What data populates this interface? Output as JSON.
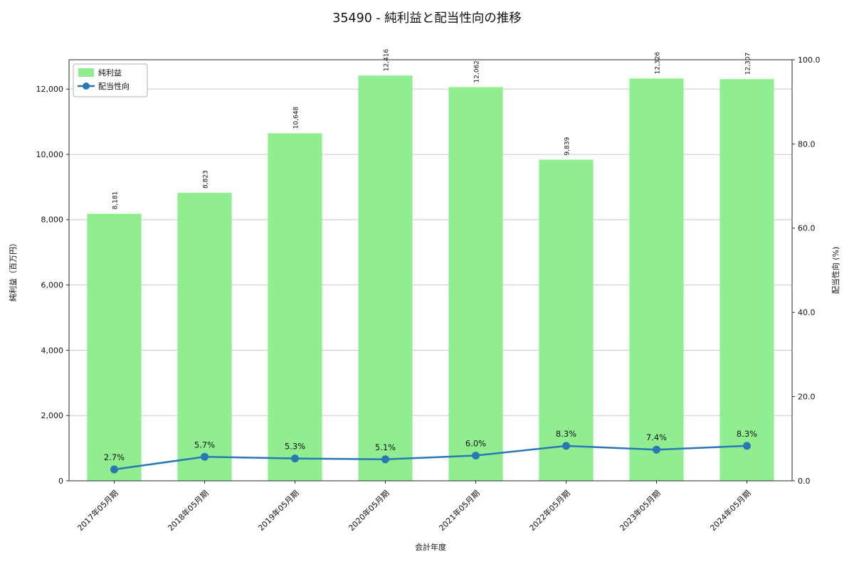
{
  "chart_data": {
    "type": "bar",
    "title": "35490 - 純利益と配当性向の推移",
    "xlabel": "会計年度",
    "ylabel_left": "純利益（百万円）",
    "ylabel_right": "配当性向 (%)",
    "categories": [
      "2017年05月期",
      "2018年05月期",
      "2019年05月期",
      "2020年05月期",
      "2021年05月期",
      "2022年05月期",
      "2023年05月期",
      "2024年05月期"
    ],
    "series": [
      {
        "name": "純利益",
        "type": "bar",
        "color": "#90ee90",
        "values": [
          8181,
          8823,
          10648,
          12416,
          12062,
          9839,
          12326,
          12307
        ]
      },
      {
        "name": "配当性向",
        "type": "line",
        "color": "#2878b5",
        "label_color": "#2a8fc0",
        "values": [
          2.7,
          5.7,
          5.3,
          5.1,
          6.0,
          8.3,
          7.4,
          8.3
        ]
      }
    ],
    "ylim_left": [
      0,
      12900
    ],
    "ylim_right": [
      0,
      100
    ],
    "left_ticks": [
      0,
      2000,
      4000,
      6000,
      8000,
      10000,
      12000
    ],
    "right_ticks": [
      0,
      20,
      40,
      60,
      80,
      100
    ],
    "grid": true,
    "legend_position": "upper left",
    "grid_color": "#c8c8c8",
    "spine_color": "#2a2a2a"
  }
}
